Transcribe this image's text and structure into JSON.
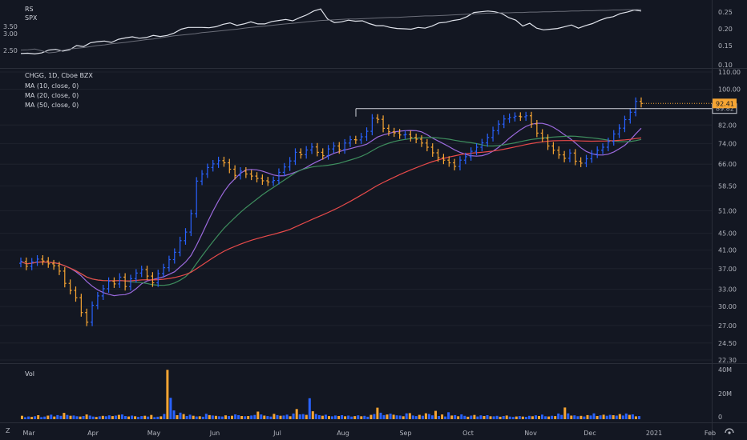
{
  "chart_data": [
    {
      "type": "line",
      "panel": "relative-strength",
      "legend": [
        "RS",
        "SPX"
      ],
      "ylim": [
        0.1,
        0.27
      ],
      "right_ticks": [
        "0.25",
        "0.20",
        "0.15",
        "0.10"
      ],
      "left_ticks": [
        "3.50",
        "3.00",
        "2.50"
      ],
      "colors": {
        "rs": "#e0e3eb",
        "spx": "#6a6d78"
      },
      "series": [
        {
          "name": "RS",
          "values": [
            0.13,
            0.131,
            0.129,
            0.132,
            0.14,
            0.142,
            0.137,
            0.141,
            0.153,
            0.15,
            0.161,
            0.164,
            0.166,
            0.162,
            0.171,
            0.175,
            0.178,
            0.174,
            0.176,
            0.182,
            0.179,
            0.182,
            0.189,
            0.2,
            0.205,
            0.205,
            0.205,
            0.204,
            0.207,
            0.214,
            0.218,
            0.211,
            0.215,
            0.221,
            0.215,
            0.215,
            0.222,
            0.225,
            0.228,
            0.224,
            0.233,
            0.241,
            0.252,
            0.258,
            0.229,
            0.219,
            0.221,
            0.226,
            0.223,
            0.224,
            0.216,
            0.21,
            0.21,
            0.205,
            0.202,
            0.201,
            0.2,
            0.205,
            0.203,
            0.209,
            0.218,
            0.22,
            0.225,
            0.228,
            0.236,
            0.248,
            0.25,
            0.252,
            0.25,
            0.245,
            0.233,
            0.226,
            0.209,
            0.217,
            0.203,
            0.198,
            0.2,
            0.202,
            0.207,
            0.212,
            0.203,
            0.21,
            0.216,
            0.225,
            0.232,
            0.236,
            0.245,
            0.249,
            0.255,
            0.252
          ]
        },
        {
          "name": "SPX",
          "values": [
            0.14,
            0.141,
            0.143,
            0.138,
            0.132,
            0.134,
            0.139,
            0.143,
            0.145,
            0.147,
            0.15,
            0.153,
            0.155,
            0.158,
            0.16,
            0.162,
            0.165,
            0.167,
            0.17,
            0.172,
            0.175,
            0.178,
            0.181,
            0.183,
            0.185,
            0.187,
            0.19,
            0.192,
            0.194,
            0.196,
            0.198,
            0.2,
            0.203,
            0.205,
            0.207,
            0.209,
            0.211,
            0.213,
            0.215,
            0.217,
            0.219,
            0.221,
            0.223,
            0.225,
            0.226,
            0.227,
            0.228,
            0.229,
            0.229,
            0.23,
            0.231,
            0.232,
            0.233,
            0.234,
            0.234,
            0.235,
            0.236,
            0.237,
            0.238,
            0.238,
            0.239,
            0.24,
            0.241,
            0.242,
            0.243,
            0.244,
            0.245,
            0.246,
            0.246,
            0.247,
            0.247,
            0.248,
            0.248,
            0.249,
            0.249,
            0.25,
            0.25,
            0.251,
            0.251,
            0.252,
            0.252,
            0.253,
            0.253,
            0.254,
            0.254,
            0.255,
            0.255,
            0.256,
            0.256,
            0.257
          ]
        }
      ]
    },
    {
      "type": "ohlc",
      "panel": "price",
      "title": "CHGG, 1D, Cboe BZX",
      "ma_legend": [
        "MA (10, close, 0)",
        "MA (20, close, 0)",
        "MA (50, close, 0)"
      ],
      "ma_colors": [
        "#9c6ade",
        "#3e8e5e",
        "#e84a4a"
      ],
      "up_color": "#2962ff",
      "down_color": "#f7a533",
      "scale": "log",
      "ylim": [
        22.3,
        110
      ],
      "y_ticks": [
        "110.00",
        "100.00",
        "89.82",
        "82.00",
        "74.00",
        "66.00",
        "58.50",
        "51.00",
        "45.00",
        "41.00",
        "37.00",
        "33.00",
        "30.00",
        "27.00",
        "24.50",
        "22.30"
      ],
      "last_price": "92.41",
      "resistance_label": "89.82",
      "resistance_level": 89.82,
      "closes": [
        38.5,
        37.5,
        38.4,
        39.0,
        38.6,
        38.0,
        37.6,
        36.5,
        34.1,
        32.8,
        31.5,
        29.0,
        27.5,
        30.2,
        31.8,
        33.1,
        34.5,
        34.0,
        35.3,
        33.5,
        35.0,
        36.1,
        36.8,
        35.5,
        34.2,
        36.0,
        37.2,
        38.9,
        40.5,
        43.2,
        45.3,
        50.2,
        60.1,
        62.5,
        64.8,
        66.1,
        67.3,
        66.5,
        64.2,
        62.0,
        63.5,
        62.5,
        61.8,
        61.0,
        60.2,
        59.8,
        60.3,
        63.1,
        65.0,
        67.2,
        70.5,
        69.6,
        71.4,
        72.6,
        70.5,
        69.2,
        71.8,
        73.0,
        71.5,
        74.2,
        75.6,
        75.5,
        76.8,
        79.2,
        85.2,
        84.6,
        80.5,
        79.0,
        78.5,
        77.6,
        77.8,
        76.5,
        75.8,
        74.2,
        72.5,
        70.3,
        68.4,
        67.5,
        66.5,
        65.2,
        67.5,
        68.8,
        70.9,
        72.5,
        74.3,
        76.5,
        79.5,
        82.4,
        84.8,
        85.5,
        86.1,
        85.8,
        86.3,
        82.5,
        78.4,
        76.2,
        73.0,
        71.3,
        69.5,
        68.2,
        70.2,
        67.1,
        66.4,
        68.0,
        69.8,
        71.3,
        72.5,
        74.8,
        78.0,
        80.6,
        84.5,
        88.0,
        93.5,
        92.4
      ]
    },
    {
      "type": "bar",
      "panel": "volume",
      "legend": "Vol",
      "y_ticks": [
        "40M",
        "20M",
        "0"
      ],
      "ylim": [
        0,
        40
      ],
      "values": [
        2.8,
        1.6,
        2.2,
        1.9,
        2.4,
        3.2,
        1.7,
        2.1,
        2.9,
        3.6,
        2.2,
        3.3,
        2.7,
        5.1,
        3.4,
        2.8,
        3.0,
        2.4,
        2.1,
        2.6,
        3.8,
        2.9,
        2.1,
        1.8,
        2.3,
        2.7,
        2.4,
        3.1,
        2.5,
        2.9,
        3.5,
        3.8,
        2.6,
        2.2,
        2.9,
        2.4,
        1.9,
        2.5,
        2.8,
        2.1,
        3.4,
        1.7,
        2.0,
        2.3,
        4.2,
        39.8,
        17.2,
        7.1,
        3.2,
        5.3,
        4.1,
        2.6,
        3.6,
        2.8,
        2.2,
        2.4,
        2.0,
        4.4,
        3.3,
        3.0,
        2.7,
        2.4,
        2.2,
        3.1,
        2.5,
        2.8,
        3.9,
        3.2,
        2.6,
        2.4,
        2.6,
        3.0,
        3.4,
        6.1,
        3.8,
        2.9,
        2.5,
        2.1,
        4.3,
        3.3,
        2.8,
        3.0,
        3.7,
        2.4,
        4.6,
        8.2,
        3.9,
        4.1,
        3.5,
        16.9,
        6.4,
        4.2,
        3.2,
        2.8,
        3.6,
        2.5,
        2.3,
        3.0,
        2.6,
        3.2,
        2.4,
        2.9,
        2.1,
        2.5,
        3.1,
        2.4,
        2.7,
        2.0,
        3.5,
        4.1,
        9.3,
        5.2,
        3.3,
        3.8,
        4.5,
        3.6,
        3.1,
        2.9,
        2.4,
        4.7,
        4.9,
        3.0,
        2.5,
        3.5,
        2.8,
        4.8,
        4.2,
        3.1,
        6.7,
        2.6,
        3.8,
        2.2,
        5.6,
        3.0,
        3.3,
        2.4,
        3.9,
        2.7,
        2.0,
        2.9,
        3.4,
        2.2,
        3.1,
        2.6,
        3.2,
        2.4,
        2.3,
        2.7,
        2.0,
        2.6,
        3.0,
        2.1,
        1.8,
        2.2,
        2.5,
        2.1,
        1.9,
        2.7,
        2.4,
        3.1,
        2.6,
        3.7,
        2.4,
        2.2,
        2.8,
        2.5,
        4.6,
        3.4,
        9.4,
        4.7,
        2.9,
        3.1,
        2.4,
        2.7,
        2.2,
        3.3,
        3.0,
        4.7,
        2.6,
        3.1,
        3.6,
        2.8,
        3.5,
        3.2,
        2.9,
        4.1,
        3.0,
        4.6,
        3.5,
        3.9,
        2.3,
        2.5
      ]
    }
  ],
  "time_axis": {
    "labels": [
      "Mar",
      "Apr",
      "May",
      "Jun",
      "Jul",
      "Aug",
      "Sep",
      "Oct",
      "Nov",
      "Dec",
      "2021",
      "Feb"
    ]
  },
  "toolbar": {
    "zoom_icon_label": "Z",
    "auto_scale_label": "auto"
  }
}
